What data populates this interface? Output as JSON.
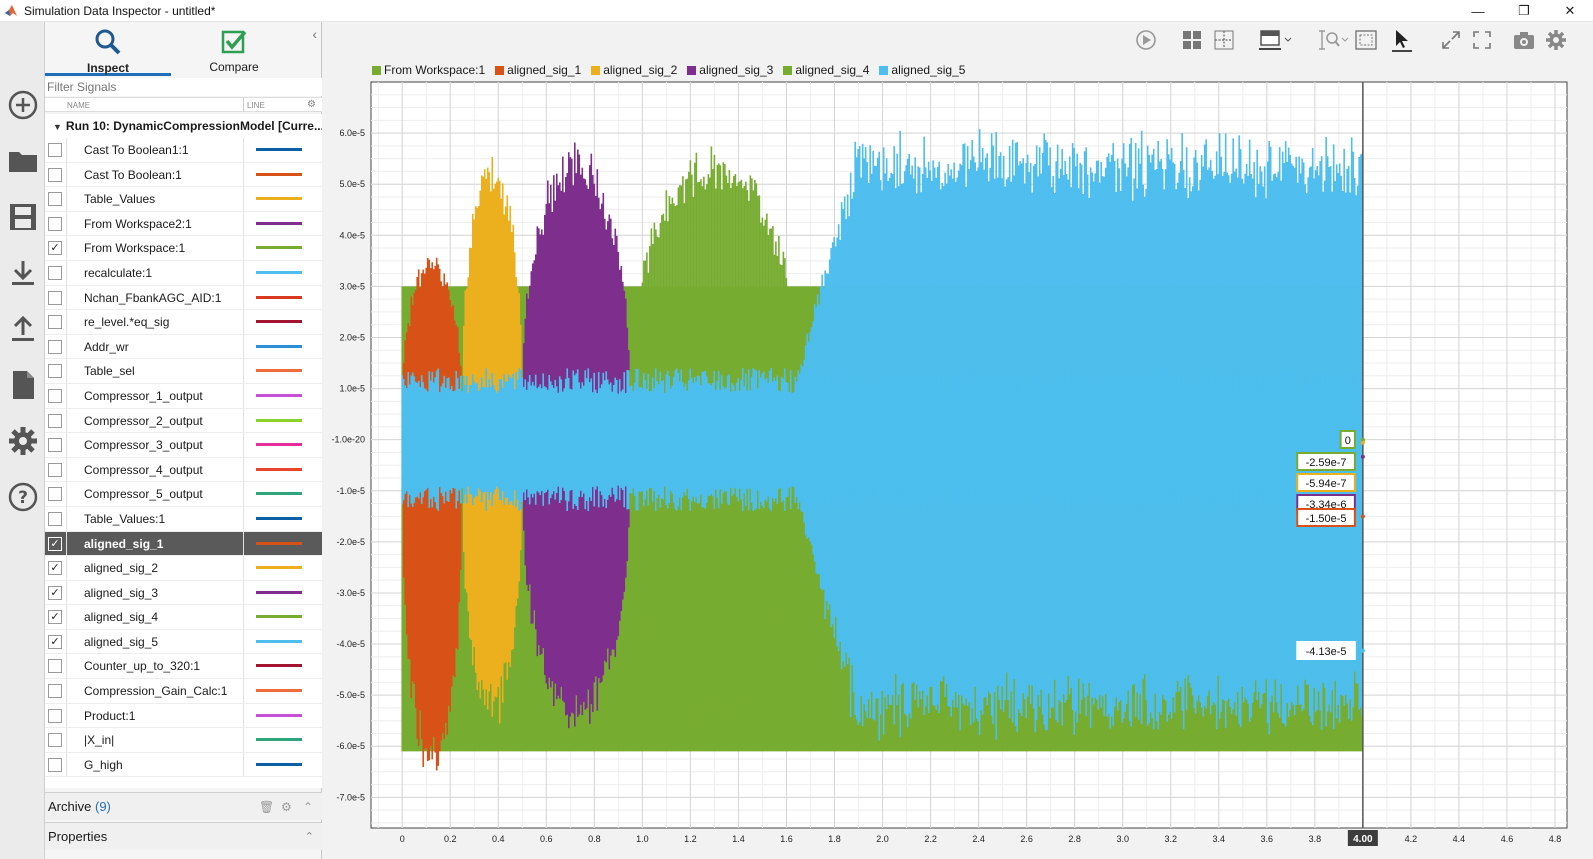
{
  "window": {
    "title": "Simulation Data Inspector - untitled*",
    "controls": [
      "—",
      "❐",
      "✕"
    ]
  },
  "tabs": [
    {
      "label": "Inspect",
      "icon": "search-icon"
    },
    {
      "label": "Compare",
      "icon": "check-icon"
    }
  ],
  "filter": {
    "placeholder": "Filter Signals"
  },
  "columns": {
    "name": "NAME",
    "line": "LINE"
  },
  "run": {
    "label": "Run 10: DynamicCompressionModel [Curre..."
  },
  "signals": [
    {
      "name": "Cast To Boolean1:1",
      "checked": false,
      "color": "#0b5fa5"
    },
    {
      "name": "Cast To Boolean:1",
      "checked": false,
      "color": "#d85218"
    },
    {
      "name": "Table_Values",
      "checked": false,
      "color": "#ecb01f"
    },
    {
      "name": "From Workspace2:1",
      "checked": false,
      "color": "#7e2f8e"
    },
    {
      "name": "From Workspace:1",
      "checked": true,
      "color": "#77ac30"
    },
    {
      "name": "recalculate:1",
      "checked": false,
      "color": "#4dbeee"
    },
    {
      "name": "Nchan_FbankAGC_AID:1",
      "checked": false,
      "color": "#d93a1f"
    },
    {
      "name": "re_level.*eq_sig",
      "checked": false,
      "color": "#a2142f"
    },
    {
      "name": "Addr_wr",
      "checked": false,
      "color": "#2a8fd6"
    },
    {
      "name": "Table_sel",
      "checked": false,
      "color": "#f26b3a"
    },
    {
      "name": "Compressor_1_output",
      "checked": false,
      "color": "#c84fd8"
    },
    {
      "name": "Compressor_2_output",
      "checked": false,
      "color": "#8bd12c"
    },
    {
      "name": "Compressor_3_output",
      "checked": false,
      "color": "#e52e9b"
    },
    {
      "name": "Compressor_4_output",
      "checked": false,
      "color": "#e8452c"
    },
    {
      "name": "Compressor_5_output",
      "checked": false,
      "color": "#2fa57c"
    },
    {
      "name": "Table_Values:1",
      "checked": false,
      "color": "#0b5fa5"
    },
    {
      "name": "aligned_sig_1",
      "checked": true,
      "color": "#d85218",
      "selected": true
    },
    {
      "name": "aligned_sig_2",
      "checked": true,
      "color": "#ecb01f"
    },
    {
      "name": "aligned_sig_3",
      "checked": true,
      "color": "#7e2f8e"
    },
    {
      "name": "aligned_sig_4",
      "checked": true,
      "color": "#77ac30"
    },
    {
      "name": "aligned_sig_5",
      "checked": true,
      "color": "#4dbeee"
    },
    {
      "name": "Counter_up_to_320:1",
      "checked": false,
      "color": "#a2142f"
    },
    {
      "name": "Compression_Gain_Calc:1",
      "checked": false,
      "color": "#f26b3a"
    },
    {
      "name": "Product:1",
      "checked": false,
      "color": "#c84fd8"
    },
    {
      "name": "|X_in|",
      "checked": false,
      "color": "#2fa57c"
    },
    {
      "name": "G_high",
      "checked": false,
      "color": "#0b5fa5"
    }
  ],
  "archive": {
    "label": "Archive",
    "count": "(9)"
  },
  "properties": {
    "label": "Properties"
  },
  "toolbar_icons": [
    "play-icon",
    "layout-grid-icon",
    "subplot-icon",
    "format-icon",
    "zoom-icon",
    "fit-icon",
    "cursor-icon",
    "fullscreen-icon",
    "expand-icon",
    "snapshot-icon",
    "settings-icon"
  ],
  "chart_data": {
    "type": "line",
    "legend": [
      {
        "name": "From Workspace:1",
        "color": "#77ac30"
      },
      {
        "name": "aligned_sig_1",
        "color": "#d85218"
      },
      {
        "name": "aligned_sig_2",
        "color": "#ecb01f"
      },
      {
        "name": "aligned_sig_3",
        "color": "#7e2f8e"
      },
      {
        "name": "aligned_sig_4",
        "color": "#77ac30"
      },
      {
        "name": "aligned_sig_5",
        "color": "#4dbeee"
      }
    ],
    "xlim": [
      -0.13,
      4.85
    ],
    "ylim": [
      -7.6e-05,
      7e-05
    ],
    "y_ticks": [
      {
        "v": 6e-05,
        "label": "6.0e-5"
      },
      {
        "v": 5e-05,
        "label": "5.0e-5"
      },
      {
        "v": 4e-05,
        "label": "4.0e-5"
      },
      {
        "v": 3e-05,
        "label": "3.0e-5"
      },
      {
        "v": 2e-05,
        "label": "2.0e-5"
      },
      {
        "v": 1e-05,
        "label": "1.0e-5"
      },
      {
        "v": 0.0,
        "label": "-1.0e-20"
      },
      {
        "v": -1e-05,
        "label": "-1.0e-5"
      },
      {
        "v": -2e-05,
        "label": "-2.0e-5"
      },
      {
        "v": -3e-05,
        "label": "-3.0e-5"
      },
      {
        "v": -4e-05,
        "label": "-4.0e-5"
      },
      {
        "v": -5e-05,
        "label": "-5.0e-5"
      },
      {
        "v": -6e-05,
        "label": "-6.0e-5"
      },
      {
        "v": -7e-05,
        "label": "-7.0e-5"
      }
    ],
    "x_ticks": [
      "0",
      "0.2",
      "0.4",
      "0.6",
      "0.8",
      "1.0",
      "1.2",
      "1.4",
      "1.6",
      "1.8",
      "2.0",
      "2.2",
      "2.4",
      "2.6",
      "2.8",
      "3.0",
      "3.2",
      "3.4",
      "3.6",
      "3.8",
      "4.0",
      "4.2",
      "4.4",
      "4.6",
      "4.8"
    ],
    "cursor": {
      "x": 4.0,
      "label": "4.00"
    },
    "bands": [
      {
        "series": "From Workspace:1",
        "color": "#77ac30",
        "x0": 0.0,
        "x1": 4.0,
        "pos": 3e-05,
        "neg": -6.1e-05
      },
      {
        "series": "aligned_sig_1",
        "color": "#d85218",
        "x0": 0.0,
        "x1": 0.25,
        "pos": 3.8e-05,
        "neg": -6.9e-05
      },
      {
        "series": "aligned_sig_2",
        "color": "#ecb01f",
        "x0": 0.25,
        "x1": 0.5,
        "pos": 5.8e-05,
        "neg": -5.8e-05
      },
      {
        "series": "aligned_sig_3",
        "color": "#7e2f8e",
        "x0": 0.5,
        "x1": 0.95,
        "pos": 5.9e-05,
        "neg": -5.9e-05
      },
      {
        "series": "aligned_sig_4",
        "color": "#77ac30",
        "x0": 0.95,
        "x1": 1.65,
        "pos": 5.9e-05,
        "neg": -5.9e-05
      },
      {
        "series": "aligned_sig_5",
        "color": "#4dbeee",
        "x0": 1.58,
        "x1": 4.0,
        "pos": 6.1e-05,
        "neg": -5.9e-05
      }
    ],
    "cursor_values": [
      {
        "label": "0",
        "color": "#77ac30",
        "y": 0.0
      },
      {
        "label": "-2.59e-7",
        "color": "#77ac30",
        "y": -2.59e-07
      },
      {
        "label": "-5.94e-7",
        "color": "#ecb01f",
        "y": -5.94e-07
      },
      {
        "label": "-3.34e-6",
        "color": "#7e2f8e",
        "y": -3.34e-06
      },
      {
        "label": "-1.50e-5",
        "color": "#d85218",
        "y": -1.5e-05
      },
      {
        "label": "-4.13e-5",
        "color": "#4dbeee",
        "y": -4.13e-05
      }
    ]
  }
}
